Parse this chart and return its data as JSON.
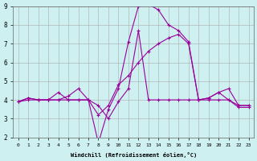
{
  "xlabel": "Windchill (Refroidissement éolien,°C)",
  "bg_color": "#cef0f0",
  "grid_color": "#aaaaaa",
  "line_color": "#990099",
  "xlim": [
    -0.5,
    23.5
  ],
  "ylim": [
    2,
    9
  ],
  "xticks": [
    0,
    1,
    2,
    3,
    4,
    5,
    6,
    7,
    8,
    9,
    10,
    11,
    12,
    13,
    14,
    15,
    16,
    17,
    18,
    19,
    20,
    21,
    22,
    23
  ],
  "yticks": [
    2,
    3,
    4,
    5,
    6,
    7,
    8,
    9
  ],
  "line1_x": [
    0,
    1,
    2,
    3,
    4,
    5,
    6,
    7,
    8,
    9,
    10,
    11,
    12,
    13,
    14,
    15,
    16,
    17,
    18,
    19,
    20,
    21,
    22,
    23
  ],
  "line1_y": [
    3.9,
    4.1,
    4.0,
    4.0,
    4.4,
    4.0,
    4.0,
    4.0,
    1.7,
    3.5,
    4.6,
    7.1,
    9.0,
    9.1,
    8.8,
    8.0,
    7.7,
    7.1,
    4.0,
    4.1,
    4.4,
    4.0,
    3.6,
    3.6
  ],
  "line2_x": [
    0,
    1,
    2,
    3,
    4,
    5,
    6,
    7,
    8,
    9,
    10,
    11,
    12,
    13,
    14,
    15,
    16,
    17,
    18,
    19,
    20,
    21,
    22,
    23
  ],
  "line2_y": [
    3.9,
    4.1,
    4.0,
    4.0,
    4.0,
    4.0,
    4.0,
    4.0,
    3.7,
    3.0,
    3.9,
    4.6,
    7.7,
    4.0,
    4.0,
    4.0,
    4.0,
    4.0,
    4.0,
    4.0,
    4.0,
    4.0,
    3.7,
    3.7
  ],
  "line3_x": [
    0,
    1,
    2,
    3,
    4,
    5,
    6,
    7,
    8,
    9,
    10,
    11,
    12,
    13,
    14,
    15,
    16,
    17,
    18,
    19,
    20,
    21,
    22,
    23
  ],
  "line3_y": [
    3.9,
    4.0,
    4.0,
    4.0,
    4.0,
    4.2,
    4.6,
    4.0,
    3.2,
    3.7,
    4.8,
    5.3,
    6.0,
    6.6,
    7.0,
    7.3,
    7.5,
    7.0,
    4.0,
    4.1,
    4.4,
    4.6,
    3.7,
    3.7
  ]
}
